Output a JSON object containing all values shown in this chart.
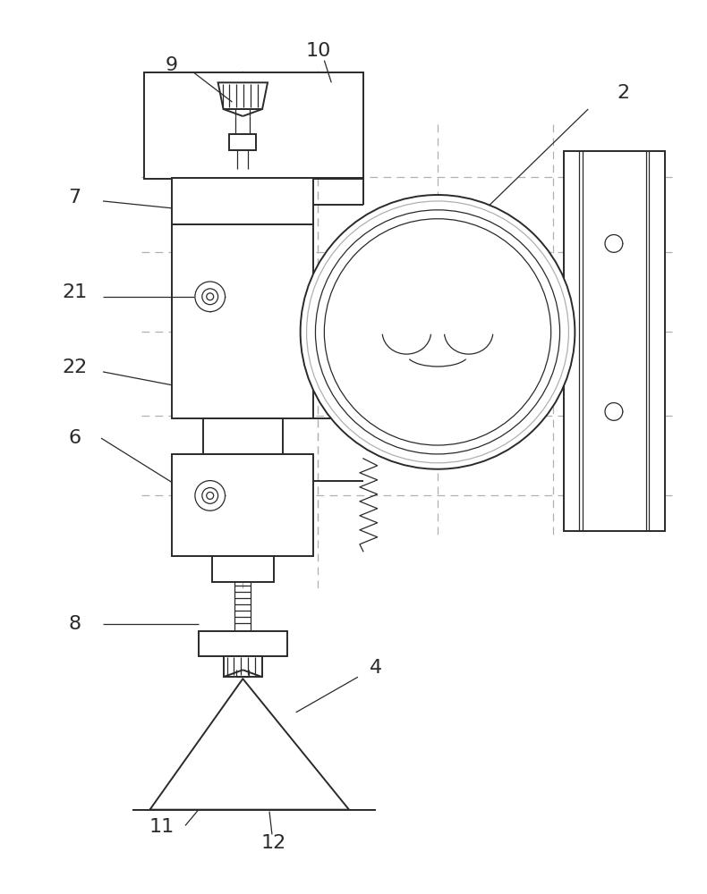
{
  "bg_color": "#ffffff",
  "line_color": "#2a2a2a",
  "dash_color": "#b0b0b0",
  "lw_main": 1.4,
  "lw_thin": 0.9,
  "label_fontsize": 16
}
